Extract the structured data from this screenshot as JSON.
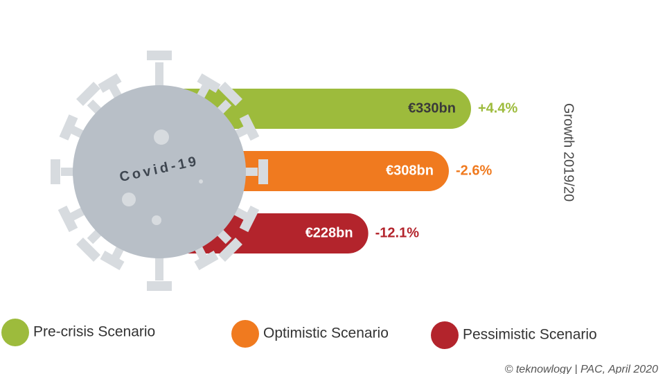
{
  "chart_data": {
    "type": "bar",
    "title": "Covid-19",
    "categories": [
      "Pre-crisis Scenario",
      "Optimistic Scenario",
      "Pessimistic Scenario"
    ],
    "values": [
      330,
      308,
      228
    ],
    "value_labels": [
      "€330bn",
      "€308bn",
      "€228bn"
    ],
    "colors": [
      "#9dbb3c",
      "#f07a1f",
      "#b3242c"
    ],
    "growth": {
      "title": "Growth 2019/20",
      "values": [
        4.4,
        -2.6,
        -12.1
      ],
      "value_labels": [
        "+4.4%",
        "-2.6%",
        "-12.1%"
      ]
    },
    "source": "© teknowlogy | PAC, April 2020"
  }
}
